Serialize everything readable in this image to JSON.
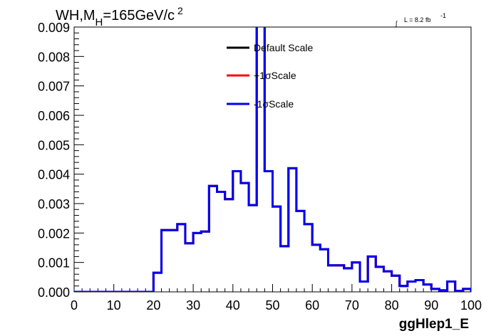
{
  "chart_data": {
    "type": "line",
    "style": "histogram-step",
    "title_main": "WH,M",
    "title_sub": "H",
    "title_value": "=165GeV/c",
    "title_sup": "2",
    "lumi_label": "L = 8.2 fb",
    "lumi_sup": "-1",
    "xlabel": "ggHlep1_E",
    "ylabel": "",
    "xlim": [
      0,
      100
    ],
    "ylim": [
      0,
      0.009
    ],
    "x_ticks": [
      "0",
      "10",
      "20",
      "30",
      "40",
      "50",
      "60",
      "70",
      "80",
      "90",
      "100"
    ],
    "y_ticks": [
      "0.000",
      "0.001",
      "0.002",
      "0.003",
      "0.004",
      "0.005",
      "0.006",
      "0.007",
      "0.008",
      "0.009"
    ],
    "legend_position": "top-center",
    "bin_width": 2,
    "series": [
      {
        "name": "Default Scale",
        "color": "#000000",
        "values": [
          0,
          0,
          0,
          0,
          0,
          0,
          0,
          0,
          0,
          0,
          0.00065,
          0.0021,
          0.0021,
          0.0023,
          0.00165,
          0.002,
          0.00205,
          0.0036,
          0.0034,
          0.00315,
          0.0041,
          0.0037,
          0.00295,
          0.0094,
          0.0041,
          0.0029,
          0.00155,
          0.0042,
          0.00275,
          0.0023,
          0.0016,
          0.00145,
          0.0009,
          0.0009,
          0.0008,
          0.001,
          0.00035,
          0.0012,
          0.00085,
          0.0007,
          0.00055,
          0.0002,
          0.00035,
          0.0004,
          0.00025,
          0.0001,
          5e-05,
          0.00035,
          3e-05,
          0.0001
        ]
      },
      {
        "name": "+1σScale",
        "color": "#ff0000",
        "values": [
          0,
          0,
          0,
          0,
          0,
          0,
          0,
          0,
          0,
          0,
          0.00065,
          0.0021,
          0.0021,
          0.0023,
          0.00165,
          0.002,
          0.00205,
          0.0036,
          0.0034,
          0.00315,
          0.0041,
          0.0037,
          0.00295,
          0.0094,
          0.0041,
          0.0029,
          0.00155,
          0.0042,
          0.00275,
          0.0023,
          0.0016,
          0.00145,
          0.0009,
          0.0009,
          0.0008,
          0.001,
          0.00035,
          0.0012,
          0.00085,
          0.0007,
          0.00055,
          0.0002,
          0.00035,
          0.0004,
          0.00025,
          0.0001,
          5e-05,
          0.00035,
          3e-05,
          0.0001
        ]
      },
      {
        "name": "-1σScale",
        "color": "#0000ee",
        "values": [
          0,
          0,
          0,
          0,
          0,
          0,
          0,
          0,
          0,
          0,
          0.00065,
          0.0021,
          0.0021,
          0.0023,
          0.00165,
          0.002,
          0.00205,
          0.0036,
          0.0034,
          0.00315,
          0.0041,
          0.0037,
          0.00295,
          0.0094,
          0.0041,
          0.0029,
          0.00155,
          0.0042,
          0.00275,
          0.0023,
          0.0016,
          0.00145,
          0.0009,
          0.0009,
          0.0008,
          0.001,
          0.00035,
          0.0012,
          0.00085,
          0.0007,
          0.00055,
          0.0002,
          0.00035,
          0.0004,
          0.00025,
          0.0001,
          5e-05,
          0.00035,
          3e-05,
          0.0001
        ]
      }
    ]
  }
}
